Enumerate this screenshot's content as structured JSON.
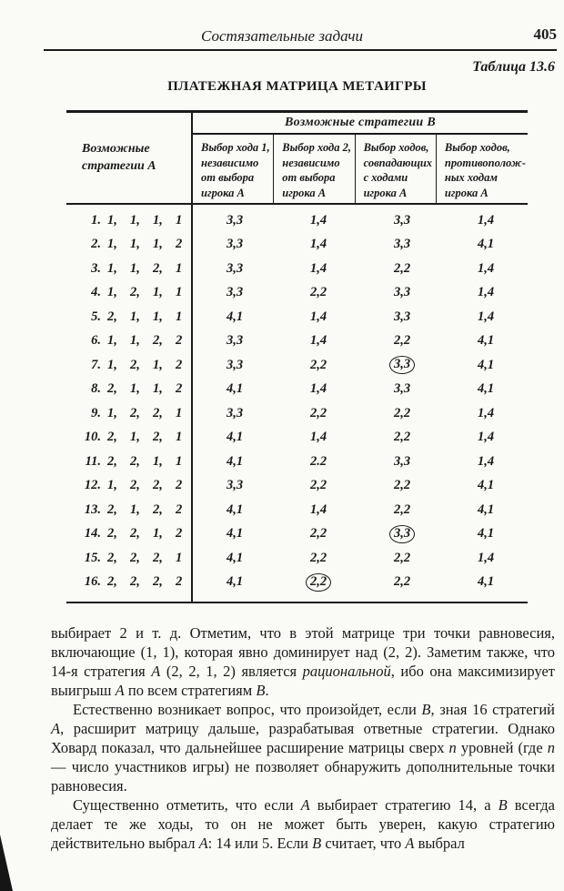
{
  "page": {
    "running_head": "Состязательные задачи",
    "page_number": "405",
    "table_caption": "Таблица 13.6",
    "table_title": "ПЛАТЕЖНАЯ МАТРИЦА МЕТАИГРЫ"
  },
  "table": {
    "col_a_header": "Возможные\nстратегии A",
    "col_b_header": "Возможные стратегии B",
    "sub_headers": [
      "Выбор хода 1,\nнезависимо\nот выбора\nигрока A",
      "Выбор хода 2,\nнезависимо\nот выбора\nигрока A",
      "Выбор ходов,\nсовпадающих\nс ходами\nигрока A",
      "Выбор ходов,\nпротивополож-\nных ходам\nигрока A"
    ],
    "rows": [
      {
        "num": "1.",
        "strategy": [
          "1",
          "1",
          "1",
          "1"
        ],
        "values": [
          "3,3",
          "1,4",
          "3,3",
          "1,4"
        ],
        "circled": []
      },
      {
        "num": "2.",
        "strategy": [
          "1",
          "1",
          "1",
          "2"
        ],
        "values": [
          "3,3",
          "1,4",
          "3,3",
          "4,1"
        ],
        "circled": []
      },
      {
        "num": "3.",
        "strategy": [
          "1",
          "1",
          "2",
          "1"
        ],
        "values": [
          "3,3",
          "1,4",
          "2,2",
          "1,4"
        ],
        "circled": []
      },
      {
        "num": "4.",
        "strategy": [
          "1",
          "2",
          "1",
          "1"
        ],
        "values": [
          "3,3",
          "2,2",
          "3,3",
          "1,4"
        ],
        "circled": []
      },
      {
        "num": "5.",
        "strategy": [
          "2",
          "1",
          "1",
          "1"
        ],
        "values": [
          "4,1",
          "1,4",
          "3,3",
          "1,4"
        ],
        "circled": []
      },
      {
        "num": "6.",
        "strategy": [
          "1",
          "1",
          "2",
          "2"
        ],
        "values": [
          "3,3",
          "1,4",
          "2,2",
          "4,1"
        ],
        "circled": []
      },
      {
        "num": "7.",
        "strategy": [
          "1",
          "2",
          "1",
          "2"
        ],
        "values": [
          "3,3",
          "2,2",
          "3,3",
          "4,1"
        ],
        "circled": [
          2
        ]
      },
      {
        "num": "8.",
        "strategy": [
          "2",
          "1",
          "1",
          "2"
        ],
        "values": [
          "4,1",
          "1,4",
          "3,3",
          "4,1"
        ],
        "circled": []
      },
      {
        "num": "9.",
        "strategy": [
          "1",
          "2",
          "2",
          "1"
        ],
        "values": [
          "3,3",
          "2,2",
          "2,2",
          "1,4"
        ],
        "circled": []
      },
      {
        "num": "10.",
        "strategy": [
          "2",
          "1",
          "2",
          "1"
        ],
        "values": [
          "4,1",
          "1,4",
          "2,2",
          "1,4"
        ],
        "circled": []
      },
      {
        "num": "11.",
        "strategy": [
          "2",
          "2",
          "1",
          "1"
        ],
        "values": [
          "4,1",
          "2.2",
          "3,3",
          "1,4"
        ],
        "circled": []
      },
      {
        "num": "12.",
        "strategy": [
          "1",
          "2",
          "2",
          "2"
        ],
        "values": [
          "3,3",
          "2,2",
          "2,2",
          "4,1"
        ],
        "circled": []
      },
      {
        "num": "13.",
        "strategy": [
          "2",
          "1",
          "2",
          "2"
        ],
        "values": [
          "4,1",
          "1,4",
          "2,2",
          "4,1"
        ],
        "circled": []
      },
      {
        "num": "14.",
        "strategy": [
          "2",
          "2",
          "1",
          "2"
        ],
        "values": [
          "4,1",
          "2,2",
          "3,3",
          "4,1"
        ],
        "circled": [
          2
        ]
      },
      {
        "num": "15.",
        "strategy": [
          "2",
          "2",
          "2",
          "1"
        ],
        "values": [
          "4,1",
          "2,2",
          "2,2",
          "1,4"
        ],
        "circled": []
      },
      {
        "num": "16.",
        "strategy": [
          "2",
          "2",
          "2",
          "2"
        ],
        "values": [
          "4,1",
          "2,2",
          "2,2",
          "4,1"
        ],
        "circled": [
          1
        ]
      }
    ]
  },
  "body_paragraphs": [
    {
      "indent": false,
      "segments": [
        {
          "t": "выбирает 2 и т. д. Отметим, что в этой матрице три точки равновесия, включающие (1, 1), которая явно доминирует над (2, 2). Заметим также, что 14-я стратегия "
        },
        {
          "t": "A",
          "i": true
        },
        {
          "t": " (2, 2, 1, 2) является "
        },
        {
          "t": "рациональной",
          "i": true
        },
        {
          "t": ", ибо она максимизирует выигрыш "
        },
        {
          "t": "A",
          "i": true
        },
        {
          "t": " по всем стратегиям "
        },
        {
          "t": "B",
          "i": true
        },
        {
          "t": "."
        }
      ]
    },
    {
      "indent": true,
      "segments": [
        {
          "t": "Естественно возникает вопрос, что произойдет, если "
        },
        {
          "t": "B",
          "i": true
        },
        {
          "t": ", зная 16 стратегий "
        },
        {
          "t": "A",
          "i": true
        },
        {
          "t": ", расширит матрицу дальше, разрабатывая ответные стратегии. Однако Ховард показал, что дальнейшее расширение матрицы сверх "
        },
        {
          "t": "n",
          "i": true
        },
        {
          "t": " уровней (где "
        },
        {
          "t": "n",
          "i": true
        },
        {
          "t": " — число участников игры) не позволяет обнаружить дополнительные точки равновесия."
        }
      ]
    },
    {
      "indent": true,
      "segments": [
        {
          "t": "Существенно отметить, что если "
        },
        {
          "t": "A",
          "i": true
        },
        {
          "t": " выбирает стратегию 14, а "
        },
        {
          "t": "B",
          "i": true
        },
        {
          "t": " всегда делает те же ходы, то он не может быть уверен, какую стратегию действительно выбрал "
        },
        {
          "t": "A",
          "i": true
        },
        {
          "t": ": 14 или 5. Если "
        },
        {
          "t": "B",
          "i": true
        },
        {
          "t": " считает, что "
        },
        {
          "t": "A",
          "i": true
        },
        {
          "t": " выбрал"
        }
      ]
    }
  ]
}
